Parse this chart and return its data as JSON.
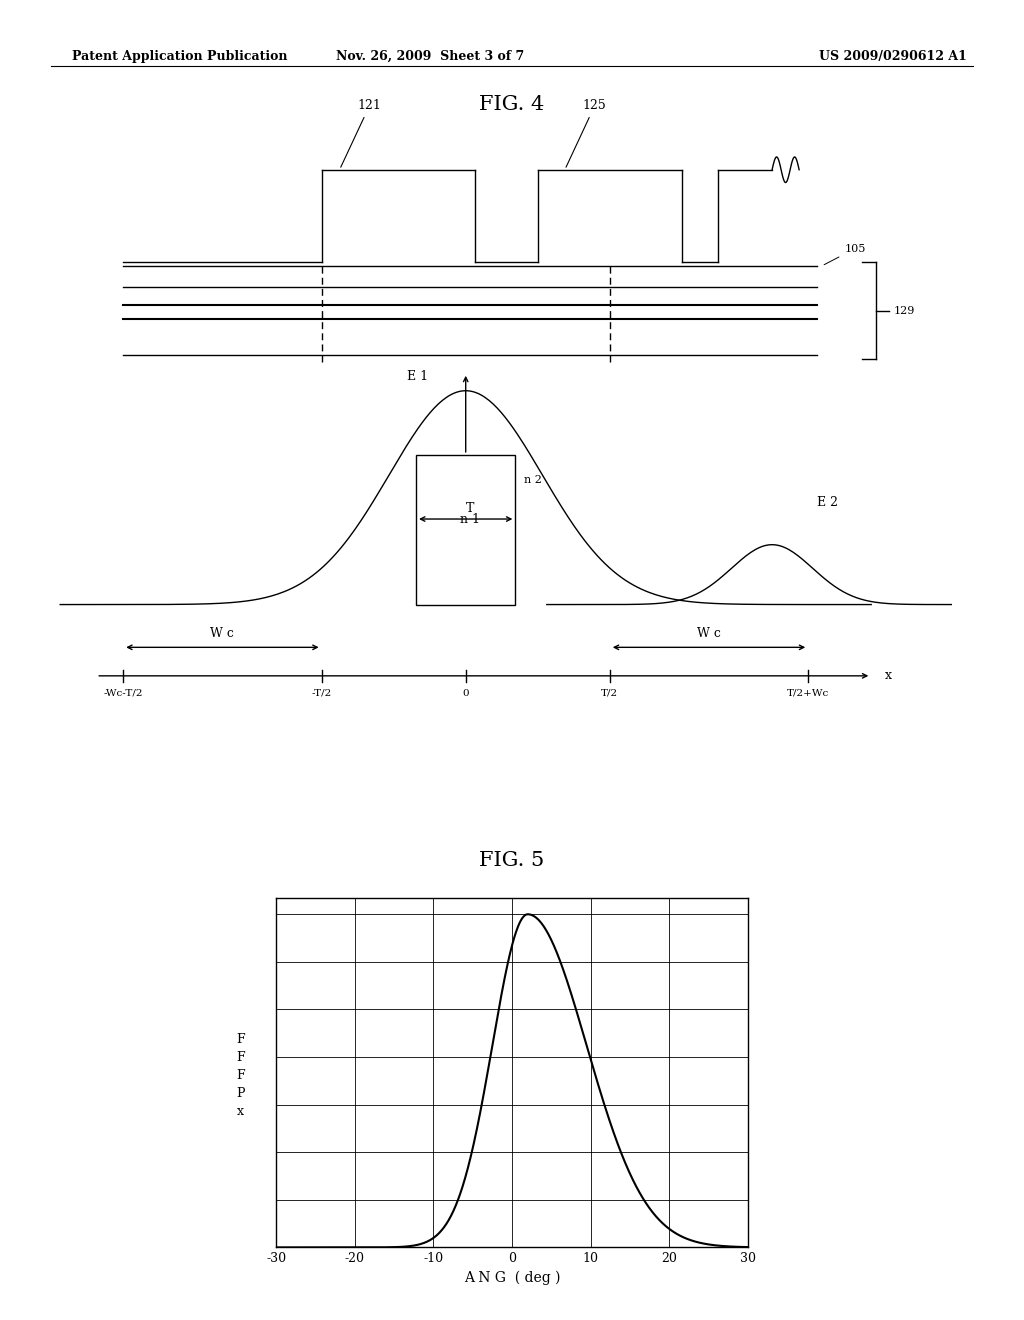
{
  "header_left": "Patent Application Publication",
  "header_mid": "Nov. 26, 2009  Sheet 3 of 7",
  "header_right": "US 2009/0290612 A1",
  "fig4_title": "FIG. 4",
  "fig5_title": "FIG. 5",
  "background": "#ffffff",
  "line_color": "#000000",
  "fig5_xlabel": "A N G  ( deg )",
  "fig5_ylabel": "F\nF\nF\nP\nx",
  "fig5_xticks": [
    -30,
    -20,
    -10,
    0,
    10,
    20,
    30
  ],
  "fig5_xlim": [
    -30,
    30
  ],
  "fig5_ylim": [
    0,
    1.05
  ],
  "fig5_ytick_count": 8
}
